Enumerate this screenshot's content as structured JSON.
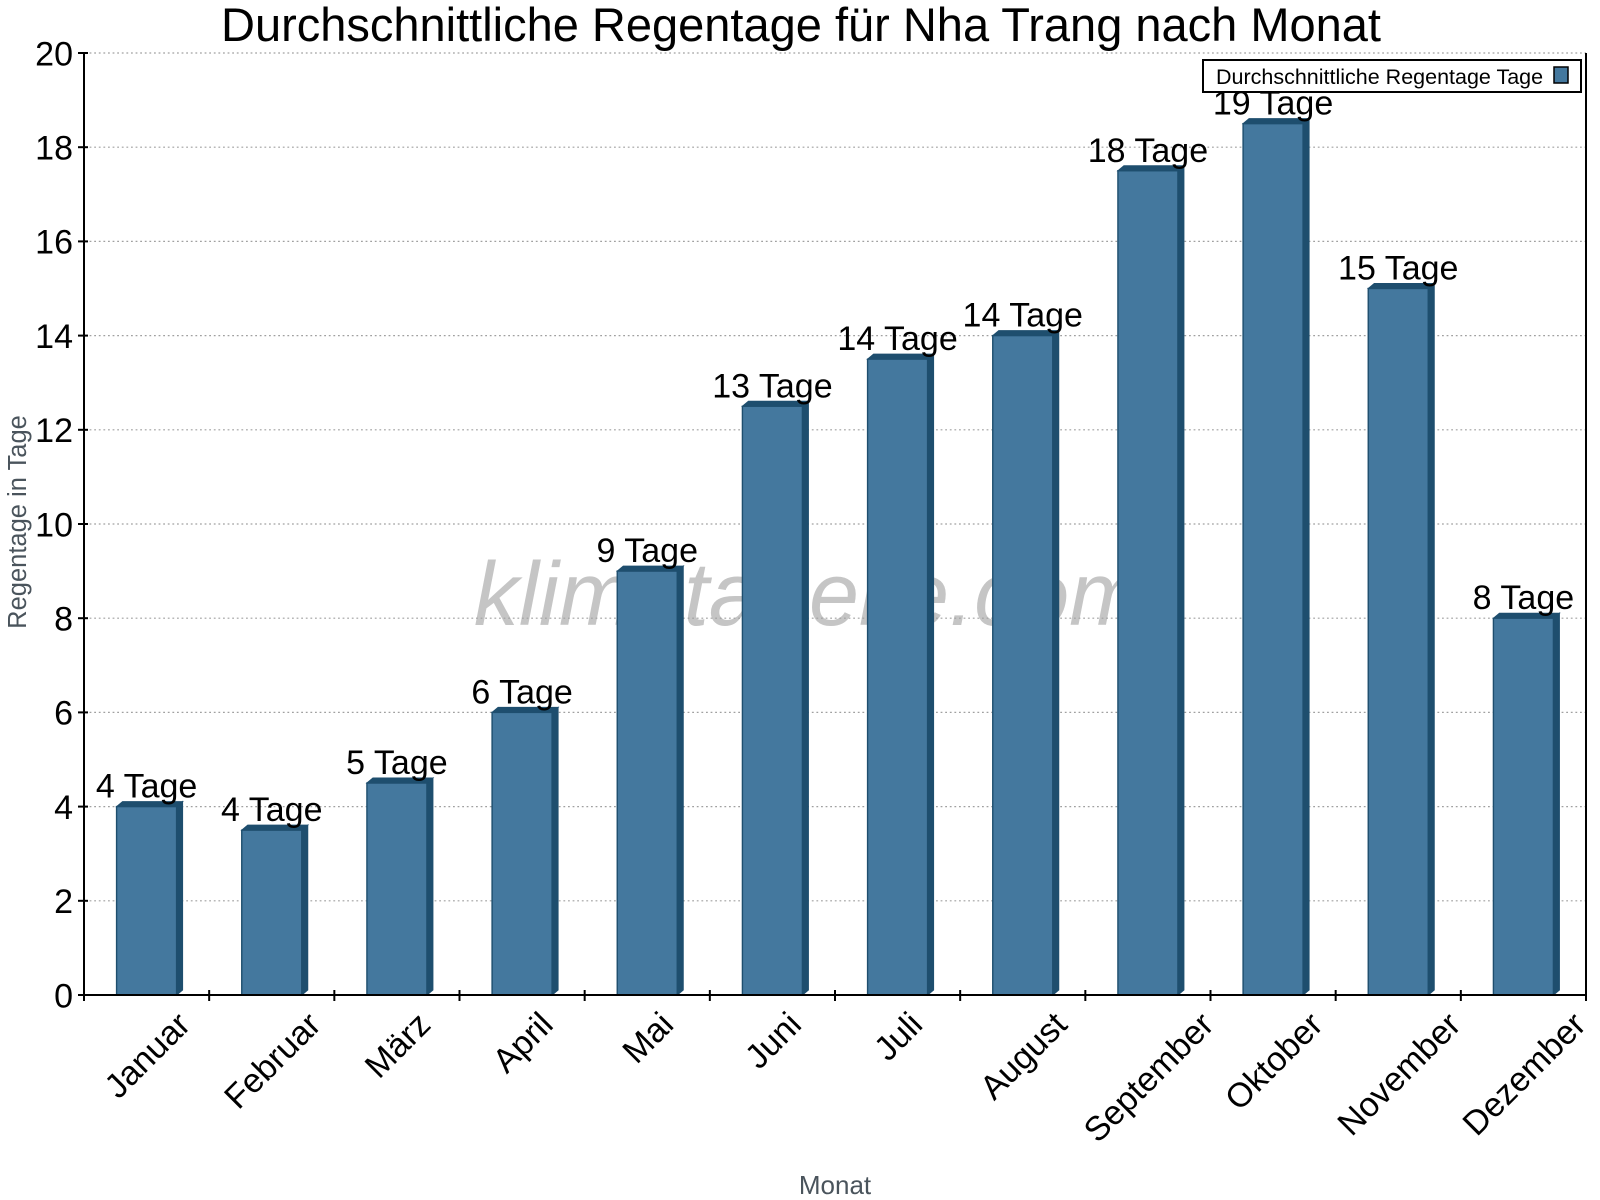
{
  "title": "Durchschnittliche Regentage für Nha Trang nach Monat",
  "watermark": "klimatabelle.com",
  "axes": {
    "x_title": "Monat",
    "y_title": "Regentage in Tage"
  },
  "legend": {
    "label": "Durchschnittliche Regentage Tage",
    "position": "top-right"
  },
  "colors": {
    "bar_front": "#44789E",
    "bar_side": "#1E4E6E",
    "axis": "#000000",
    "grid": "#A0A0A0",
    "axis_title": "#4A545C",
    "watermark": "#C5C5C5",
    "text": "#000000",
    "background": "#FFFFFF"
  },
  "chart_data": {
    "type": "bar",
    "title": "Durchschnittliche Regentage für Nha Trang nach Monat",
    "xlabel": "Monat",
    "ylabel": "Regentage in Tage",
    "series_name": "Durchschnittliche Regentage Tage",
    "categories": [
      "Januar",
      "Februar",
      "März",
      "April",
      "Mai",
      "Juni",
      "Juli",
      "August",
      "September",
      "Oktober",
      "November",
      "Dezember"
    ],
    "values": [
      4,
      3.5,
      4.5,
      6,
      9,
      12.5,
      13.5,
      14,
      17.5,
      18.5,
      15,
      8
    ],
    "bar_labels": [
      "4 Tage",
      "4 Tage",
      "5 Tage",
      "6 Tage",
      "9 Tage",
      "13 Tage",
      "14 Tage",
      "14 Tage",
      "18 Tage",
      "19 Tage",
      "15 Tage",
      "8 Tage"
    ],
    "ylim": [
      0,
      20
    ],
    "ytick_step": 2,
    "yticks": [
      0,
      2,
      4,
      6,
      8,
      10,
      12,
      14,
      16,
      18,
      20
    ],
    "grid": "horizontal dotted",
    "legend_position": "top-right",
    "bar_style": "3d"
  }
}
